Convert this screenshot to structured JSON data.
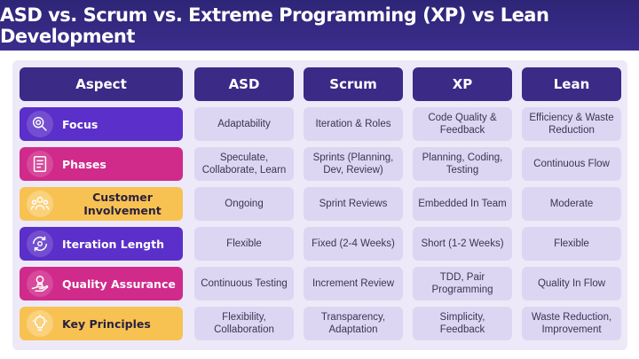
{
  "title": "ASD vs. Scrum vs. Extreme Programming (XP) vs Lean Development",
  "headers": [
    "Aspect",
    "ASD",
    "Scrum",
    "XP",
    "Lean"
  ],
  "rows": [
    {
      "label": "Focus",
      "icon": "target-search-icon",
      "color": "#5b2fc9",
      "cells": [
        "Adaptability",
        "Iteration & Roles",
        "Code Quality & Feedback",
        "Efficiency & Waste Reduction"
      ]
    },
    {
      "label": "Phases",
      "icon": "document-list-icon",
      "color": "#d02a8a",
      "cells": [
        "Speculate, Collaborate, Learn",
        "Sprints (Planning, Dev, Review)",
        "Planning, Coding, Testing",
        "Continuous Flow"
      ]
    },
    {
      "label": "Customer Involvement",
      "icon": "team-people-icon",
      "color": "#f8c252",
      "cells": [
        "Ongoing",
        "Sprint Reviews",
        "Embedded In Team",
        "Moderate"
      ]
    },
    {
      "label": "Iteration Length",
      "icon": "cycle-gear-icon",
      "color": "#5b2fc9",
      "cells": [
        "Flexible",
        "Fixed (2-4 Weeks)",
        "Short (1-2 Weeks)",
        "Flexible"
      ]
    },
    {
      "label": "Quality Assurance",
      "icon": "hand-award-icon",
      "color": "#d02a8a",
      "cells": [
        "Continuous Testing",
        "Increment Review",
        "TDD, Pair Programming",
        "Quality In Flow"
      ]
    },
    {
      "label": "Key Principles",
      "icon": "lightbulb-icon",
      "color": "#f8c252",
      "cells": [
        "Flexibility, Collaboration",
        "Transparency, Adaptation",
        "Simplicity, Feedback",
        "Waste Reduction, Improvement"
      ]
    }
  ]
}
